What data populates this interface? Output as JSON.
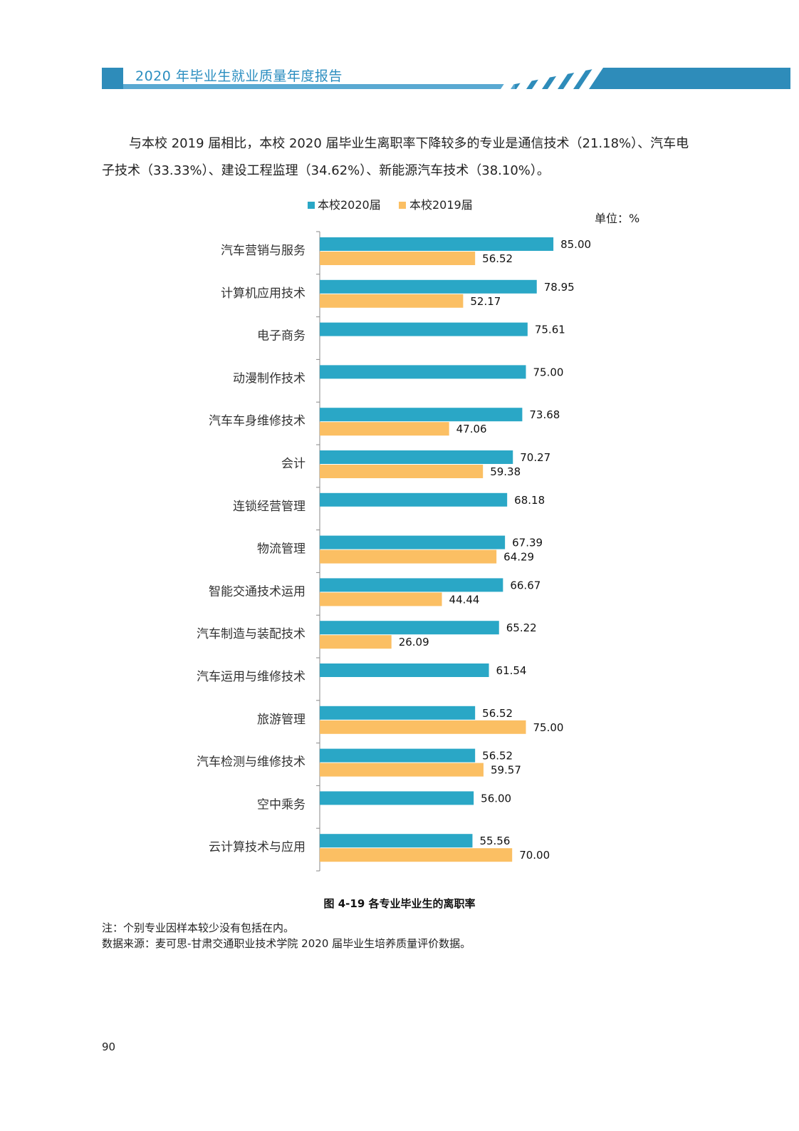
{
  "header": {
    "title": "2020 年毕业生就业质量年度报告"
  },
  "paragraph": {
    "text": "与本校 2019 届相比，本校 2020 届毕业生离职率下降较多的专业是通信技术（21.18%）、汽车电子技术（33.33%）、建设工程监理（34.62%）、新能源汽车技术（38.10%）。"
  },
  "colors": {
    "header_blue": "#2e8cba",
    "header_light": "#5aa9d2",
    "series_2020": "#2aa7c6",
    "series_2019": "#fbbf63",
    "axis": "#8a8a8a"
  },
  "chart_data": {
    "type": "bar",
    "orientation": "horizontal",
    "title": "图 4-19  各专业毕业生的离职率",
    "unit": "单位：%",
    "legend_position": "top",
    "categories": [
      "汽车营销与服务",
      "计算机应用技术",
      "电子商务",
      "动漫制作技术",
      "汽车车身维修技术",
      "会计",
      "连锁经营管理",
      "物流管理",
      "智能交通技术运用",
      "汽车制造与装配技术",
      "汽车运用与维修技术",
      "旅游管理",
      "汽车检测与维修技术",
      "空中乘务",
      "云计算技术与应用"
    ],
    "series": [
      {
        "name": "本校2020届",
        "values": [
          85.0,
          78.95,
          75.61,
          75.0,
          73.68,
          70.27,
          68.18,
          67.39,
          66.67,
          65.22,
          61.54,
          56.52,
          56.52,
          56.0,
          55.56
        ],
        "labels": [
          "85.00",
          "78.95",
          "75.61",
          "75.00",
          "73.68",
          "70.27",
          "68.18",
          "67.39",
          "66.67",
          "65.22",
          "61.54",
          "56.52",
          "56.52",
          "56.00",
          "55.56"
        ]
      },
      {
        "name": "本校2019届",
        "values": [
          56.52,
          52.17,
          null,
          null,
          47.06,
          59.38,
          null,
          64.29,
          44.44,
          26.09,
          null,
          75.0,
          59.57,
          null,
          70.0
        ],
        "labels": [
          "56.52",
          "52.17",
          "",
          "",
          "47.06",
          "59.38",
          "",
          "64.29",
          "44.44",
          "26.09",
          "",
          "75.00",
          "59.57",
          "",
          "70.00"
        ]
      }
    ],
    "xlim": [
      0,
      100
    ]
  },
  "notes": {
    "note": "注：个别专业因样本较少没有包括在内。",
    "source": "数据来源：麦可思-甘肃交通职业技术学院 2020 届毕业生培养质量评价数据。"
  },
  "page_number": "90"
}
